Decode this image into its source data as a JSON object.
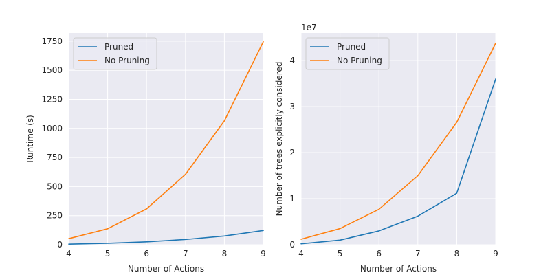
{
  "chart_data": [
    {
      "type": "line",
      "title": "",
      "xlabel": "Number of Actions",
      "ylabel": "Runtime (s)",
      "offset_text": "",
      "x": [
        4,
        5,
        6,
        7,
        8,
        9
      ],
      "xlim": [
        4,
        9
      ],
      "ylim": [
        0,
        1820
      ],
      "xticks": [
        4,
        5,
        6,
        7,
        8,
        9
      ],
      "yticks": [
        0,
        250,
        500,
        750,
        1000,
        1250,
        1500,
        1750
      ],
      "series": [
        {
          "name": "Pruned",
          "color": "#1f77b4",
          "values": [
            5,
            12,
            25,
            45,
            75,
            122
          ]
        },
        {
          "name": "No Pruning",
          "color": "#ff7f0e",
          "values": [
            52,
            137,
            308,
            605,
            1065,
            1745
          ]
        }
      ],
      "legend": "top-left",
      "grid": true,
      "background": "#eaeaf2"
    },
    {
      "type": "line",
      "title": "",
      "xlabel": "Number of Actions",
      "ylabel": "Number of trees explicitly considered",
      "offset_text": "1e7",
      "x": [
        4,
        5,
        6,
        7,
        8,
        9
      ],
      "xlim": [
        4,
        9
      ],
      "ylim": [
        0,
        4.6
      ],
      "xticks": [
        4,
        5,
        6,
        7,
        8,
        9
      ],
      "yticks": [
        0,
        1,
        2,
        3,
        4
      ],
      "series": [
        {
          "name": "Pruned",
          "color": "#1f77b4",
          "values": [
            0.02,
            0.1,
            0.3,
            0.62,
            1.12,
            3.6
          ]
        },
        {
          "name": "No Pruning",
          "color": "#ff7f0e",
          "values": [
            0.12,
            0.35,
            0.77,
            1.5,
            2.66,
            4.38
          ]
        }
      ],
      "legend": "top-left",
      "grid": true,
      "background": "#eaeaf2"
    }
  ]
}
